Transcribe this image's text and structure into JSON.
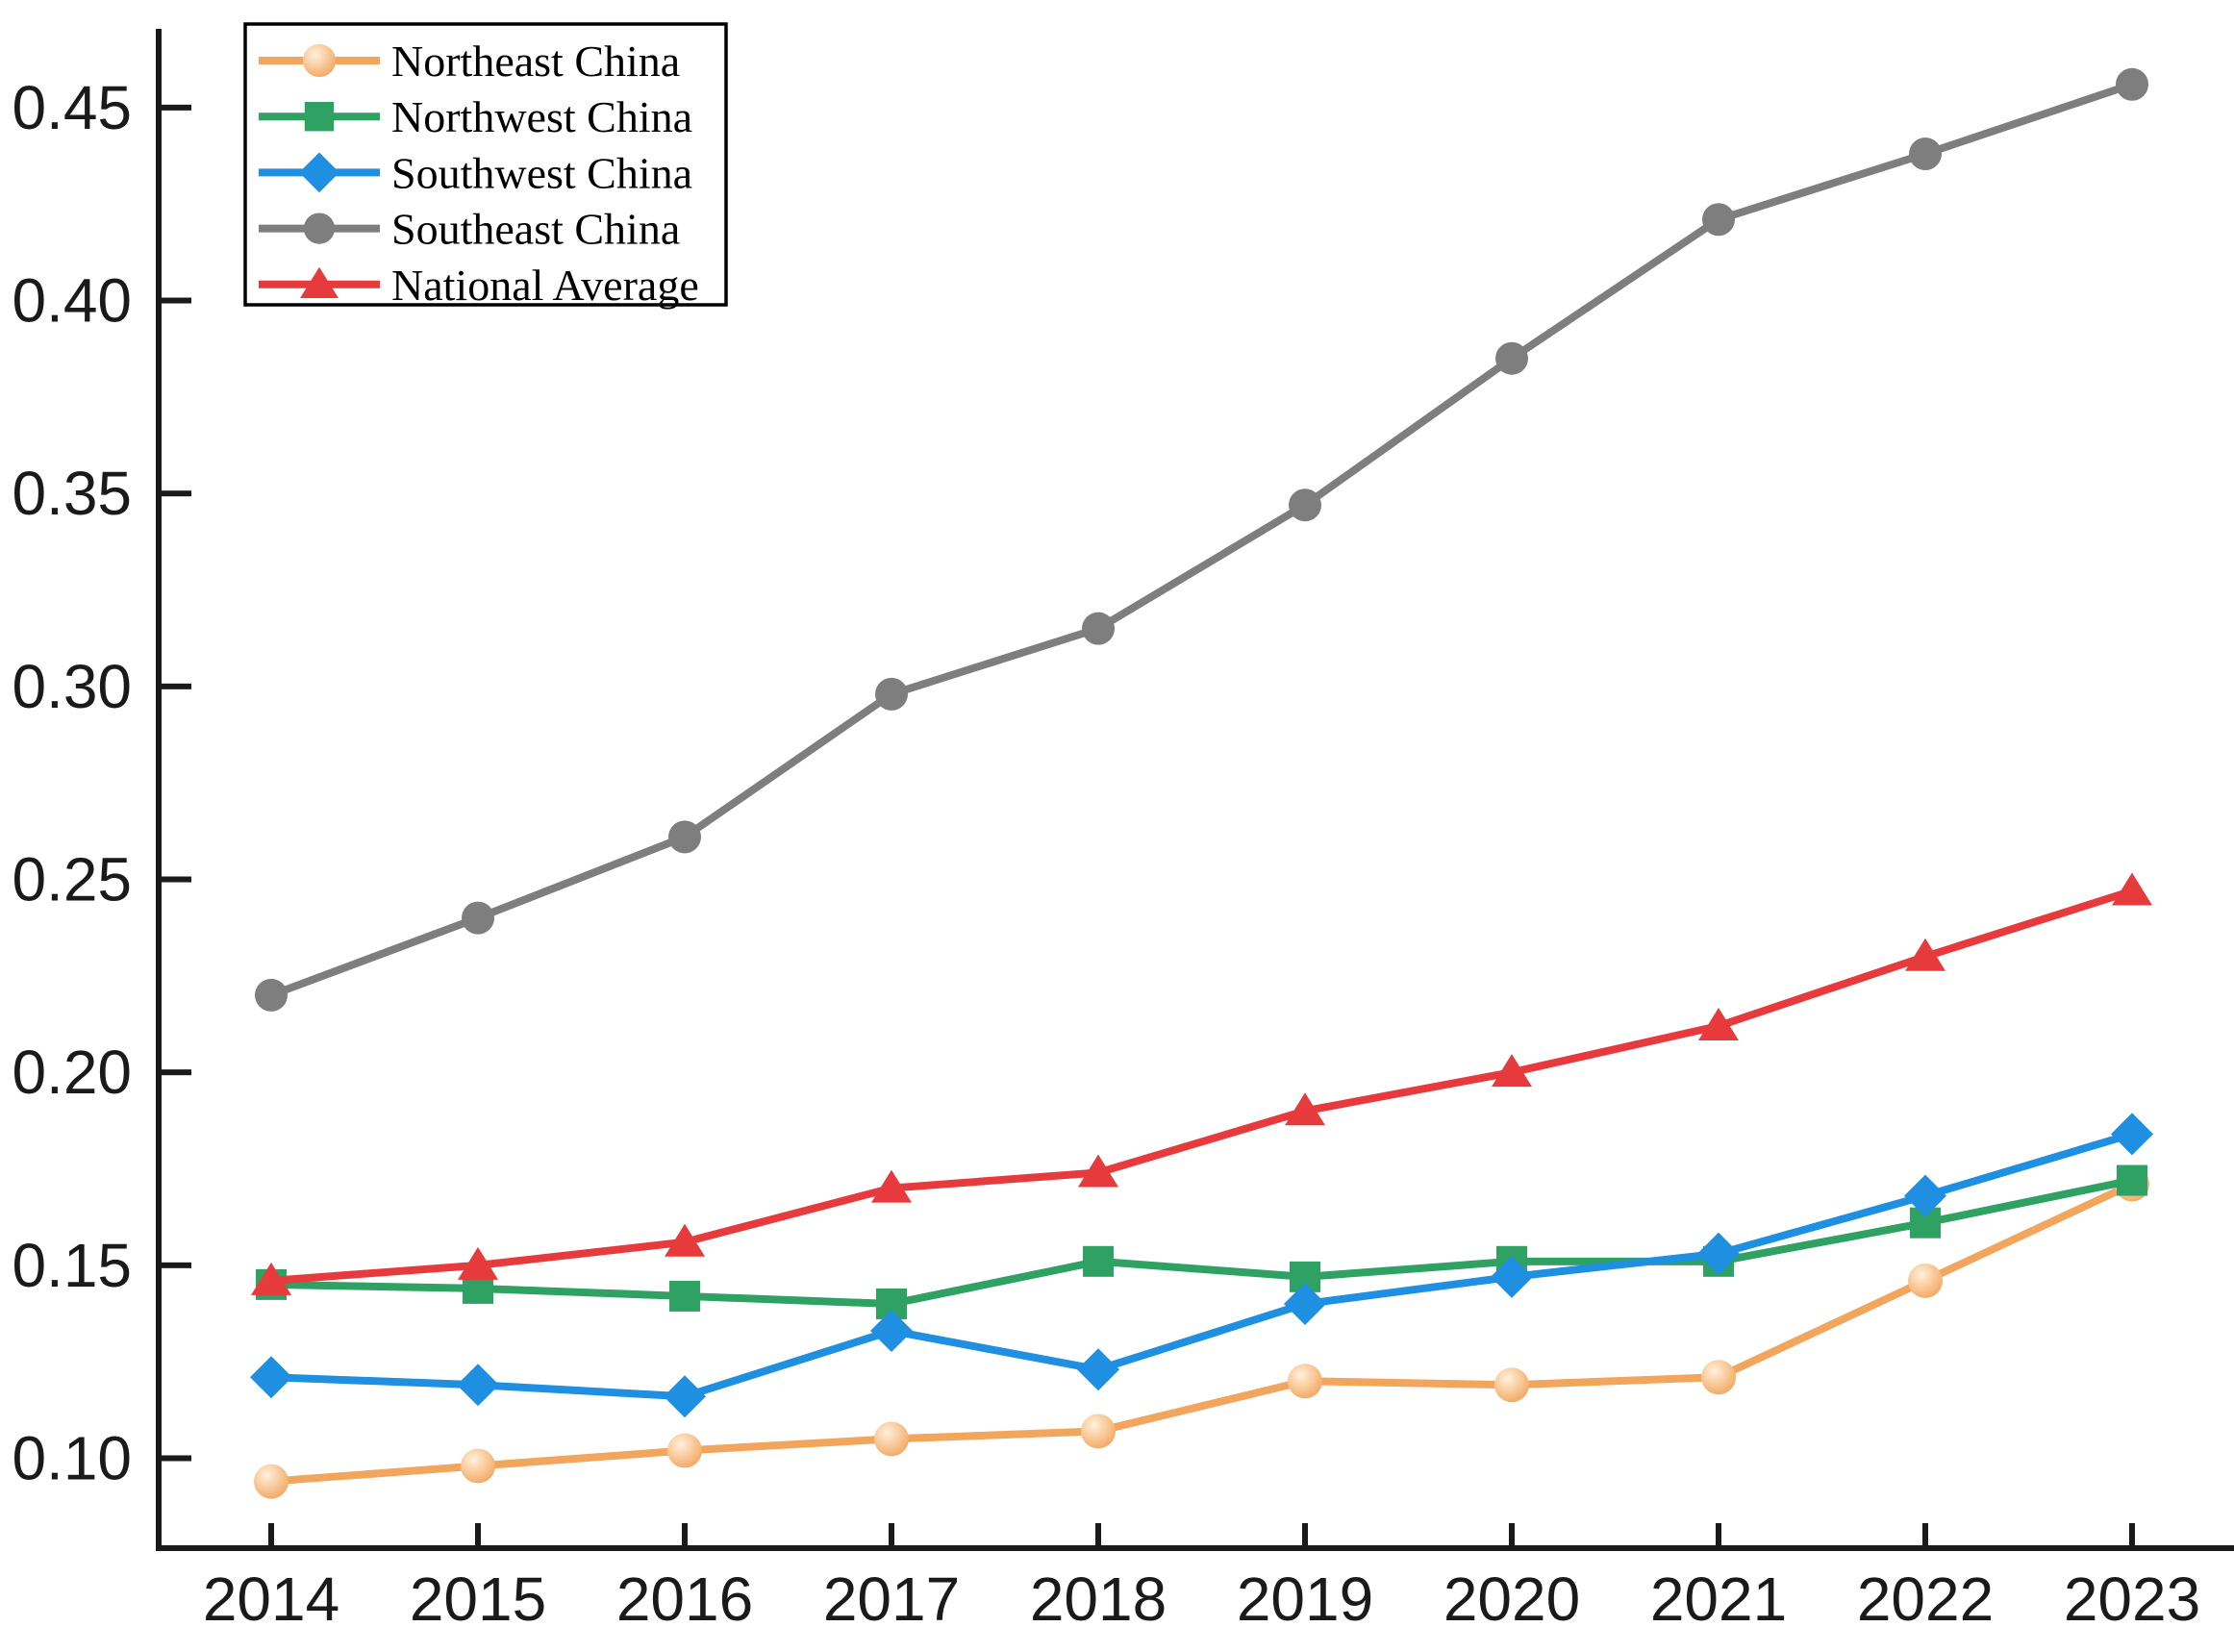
{
  "chart_data": {
    "type": "line",
    "title": "",
    "xlabel": "",
    "ylabel": "",
    "grid": false,
    "legend_position": "upper-left",
    "background_color": "#ffffff",
    "axis_color": "#1a1a1a",
    "categories": [
      "2014",
      "2015",
      "2016",
      "2017",
      "2018",
      "2019",
      "2020",
      "2021",
      "2022",
      "2023"
    ],
    "yticks": [
      0.1,
      0.15,
      0.2,
      0.25,
      0.3,
      0.35,
      0.4,
      0.45
    ],
    "ylim": [
      0.0767,
      0.4704
    ],
    "series": [
      {
        "name": "Northeast China",
        "marker": "sphere",
        "color": "#F2A55C",
        "marker_inner_color": "#FFF1DC",
        "values": [
          0.094,
          0.098,
          0.102,
          0.105,
          0.107,
          0.12,
          0.119,
          0.121,
          0.146,
          0.171
        ]
      },
      {
        "name": "Northwest China",
        "marker": "square",
        "color": "#2FA163",
        "values": [
          0.145,
          0.144,
          0.142,
          0.14,
          0.151,
          0.147,
          0.151,
          0.151,
          0.161,
          0.172
        ]
      },
      {
        "name": "Southwest China",
        "marker": "diamond",
        "color": "#1E8FE1",
        "values": [
          0.121,
          0.119,
          0.116,
          0.133,
          0.123,
          0.14,
          0.147,
          0.153,
          0.168,
          0.184
        ]
      },
      {
        "name": "Southeast China",
        "marker": "circle",
        "color": "#7E7E7E",
        "values": [
          0.22,
          0.24,
          0.261,
          0.298,
          0.315,
          0.347,
          0.385,
          0.421,
          0.438,
          0.456
        ]
      },
      {
        "name": "National Average",
        "marker": "triangle",
        "color": "#E73A3C",
        "values": [
          0.146,
          0.15,
          0.156,
          0.17,
          0.174,
          0.19,
          0.2,
          0.212,
          0.23,
          0.247
        ]
      }
    ]
  }
}
